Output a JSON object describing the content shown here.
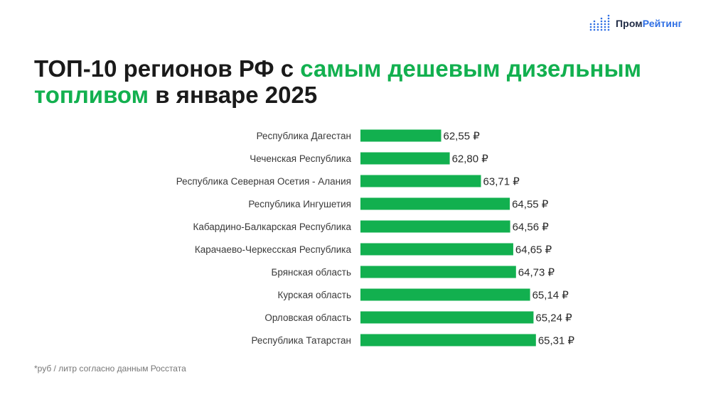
{
  "logo": {
    "part1": "Пром",
    "part2": "Рейтинг"
  },
  "title": {
    "part1": "ТОП-10 регионов РФ с ",
    "highlight1": "самым дешевым дизельным",
    "highlight2": "топливом",
    "part2": " в январе 2025"
  },
  "colors": {
    "accent": "#12b04f",
    "brand_blue": "#2f6fe4",
    "brand_dark": "#1f2a44"
  },
  "footnote": "*руб / литр согласно данным Росстата",
  "chart_data": {
    "type": "bar",
    "orientation": "horizontal",
    "categories": [
      "Республика Дагестан",
      "Чеченская Республика",
      "Республика Северная Осетия - Алания",
      "Республика Ингушетия",
      "Кабардино-Балкарская Республика",
      "Карачаево-Черкесская Республика",
      "Брянская область",
      "Курская область",
      "Орловская область",
      "Республика Татарстан"
    ],
    "values": [
      62.55,
      62.8,
      63.71,
      64.55,
      64.56,
      64.65,
      64.73,
      65.14,
      65.24,
      65.31
    ],
    "value_labels": [
      "62,55 ₽",
      "62,80 ₽",
      "63,71 ₽",
      "64,55 ₽",
      "64,56 ₽",
      "64,65 ₽",
      "64,73 ₽",
      "65,14 ₽",
      "65,24 ₽",
      "65,31 ₽"
    ],
    "axis_min": 60.2,
    "grid": false,
    "legend": "none"
  }
}
